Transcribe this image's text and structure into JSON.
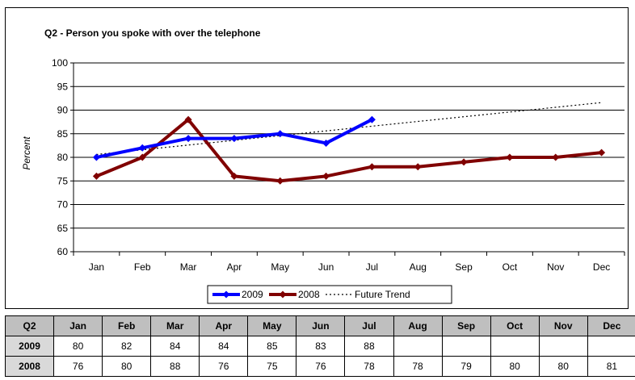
{
  "chart_data": {
    "type": "line",
    "title": "Q2 - Person you spoke with over the telephone",
    "ylabel": "Percent",
    "xlabel": "",
    "categories": [
      "Jan",
      "Feb",
      "Mar",
      "Apr",
      "May",
      "Jun",
      "Jul",
      "Aug",
      "Sep",
      "Oct",
      "Nov",
      "Dec"
    ],
    "ylim": [
      60,
      100
    ],
    "yticks": [
      60,
      65,
      70,
      75,
      80,
      85,
      90,
      95,
      100
    ],
    "grid": true,
    "legend_position": "bottom",
    "series": [
      {
        "name": "2009",
        "color": "#0000ff",
        "marker": "diamond",
        "values": [
          80,
          82,
          84,
          84,
          85,
          83,
          88,
          null,
          null,
          null,
          null,
          null
        ]
      },
      {
        "name": "2008",
        "color": "#800000",
        "marker": "diamond",
        "values": [
          76,
          80,
          88,
          76,
          75,
          76,
          78,
          78,
          79,
          80,
          80,
          81
        ]
      },
      {
        "name": "Future Trend",
        "color": "#000000",
        "style": "dotted",
        "values": [
          80.6,
          81.6,
          82.6,
          83.6,
          84.6,
          85.6,
          86.6,
          87.6,
          88.6,
          89.6,
          90.6,
          91.6
        ]
      }
    ]
  },
  "table": {
    "header": [
      "Q2",
      "Jan",
      "Feb",
      "Mar",
      "Apr",
      "May",
      "Jun",
      "Jul",
      "Aug",
      "Sep",
      "Oct",
      "Nov",
      "Dec"
    ],
    "rows": [
      {
        "label": "2009",
        "cells": [
          "80",
          "82",
          "84",
          "84",
          "85",
          "83",
          "88",
          "",
          "",
          "",
          "",
          ""
        ]
      },
      {
        "label": "2008",
        "cells": [
          "76",
          "80",
          "88",
          "76",
          "75",
          "76",
          "78",
          "78",
          "79",
          "80",
          "80",
          "81"
        ]
      }
    ]
  }
}
